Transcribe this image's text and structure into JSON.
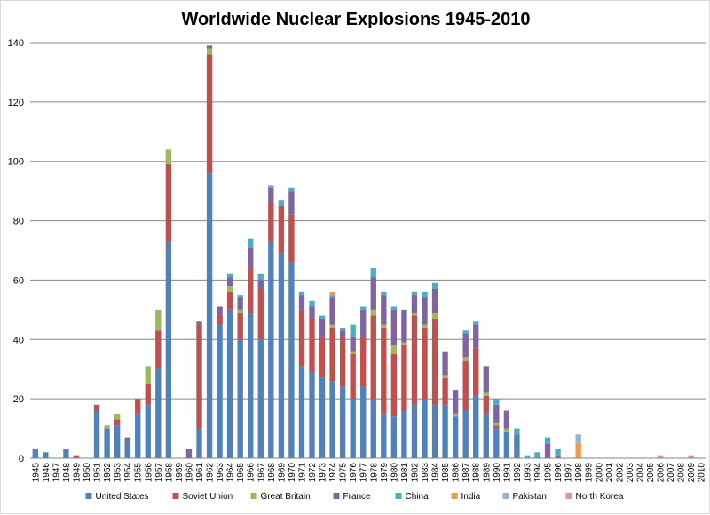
{
  "chart_data": {
    "type": "bar",
    "stacked": true,
    "title": "Worldwide Nuclear Explosions 1945-2010",
    "xlabel": "",
    "ylabel": "",
    "ylim": [
      0,
      140
    ],
    "yticks": [
      "0",
      "20",
      "40",
      "60",
      "80",
      "100",
      "120",
      "140"
    ],
    "grid": true,
    "legend": "bottom",
    "categories": [
      "1945",
      "1946",
      "1947",
      "1948",
      "1949",
      "1950",
      "1951",
      "1952",
      "1953",
      "1954",
      "1955",
      "1956",
      "1957",
      "1958",
      "1959",
      "1960",
      "1961",
      "1962",
      "1963",
      "1964",
      "1965",
      "1966",
      "1967",
      "1968",
      "1969",
      "1970",
      "1971",
      "1972",
      "1973",
      "1974",
      "1975",
      "1976",
      "1977",
      "1978",
      "1979",
      "1980",
      "1981",
      "1982",
      "1983",
      "1984",
      "1985",
      "1986",
      "1987",
      "1988",
      "1989",
      "1990",
      "1991",
      "1992",
      "1993",
      "1994",
      "1995",
      "1996",
      "1997",
      "1998",
      "1999",
      "2000",
      "2001",
      "2002",
      "2003",
      "2004",
      "2005",
      "2006",
      "2007",
      "2008",
      "2009",
      "2010"
    ],
    "series": [
      {
        "name": "United States",
        "color": "#4f81bd",
        "values": [
          3,
          2,
          0,
          3,
          0,
          0,
          16,
          10,
          11,
          6,
          15,
          18,
          30,
          73,
          0,
          0,
          10,
          96,
          45,
          50,
          40,
          49,
          40,
          73,
          69,
          66,
          31,
          29,
          27,
          26,
          24,
          20,
          24,
          20,
          15,
          14,
          16,
          18,
          20,
          18,
          18,
          14,
          16,
          21,
          15,
          10,
          9,
          8,
          0,
          0,
          0,
          0,
          0,
          0,
          0,
          0,
          0,
          0,
          0,
          0,
          0,
          0,
          0,
          0,
          0,
          0
        ]
      },
      {
        "name": "Soviet Union",
        "color": "#c0504d",
        "values": [
          0,
          0,
          0,
          0,
          1,
          0,
          2,
          0,
          2,
          1,
          5,
          7,
          13,
          26,
          0,
          0,
          35,
          40,
          3,
          6,
          9,
          15,
          17,
          13,
          16,
          16,
          19,
          18,
          14,
          18,
          17,
          15,
          17,
          28,
          29,
          21,
          22,
          30,
          24,
          29,
          9,
          0,
          17,
          16,
          6,
          1,
          0,
          0,
          0,
          0,
          0,
          0,
          0,
          0,
          0,
          0,
          0,
          0,
          0,
          0,
          0,
          0,
          0,
          0,
          0,
          0
        ]
      },
      {
        "name": "Great Britain",
        "color": "#9bbb59",
        "values": [
          0,
          0,
          0,
          0,
          0,
          0,
          0,
          1,
          2,
          0,
          0,
          6,
          7,
          5,
          0,
          0,
          0,
          2,
          0,
          2,
          1,
          0,
          0,
          0,
          0,
          0,
          0,
          0,
          0,
          1,
          0,
          1,
          0,
          2,
          1,
          3,
          1,
          1,
          1,
          2,
          1,
          1,
          1,
          0,
          1,
          1,
          1,
          0,
          0,
          0,
          0,
          0,
          0,
          0,
          0,
          0,
          0,
          0,
          0,
          0,
          0,
          0,
          0,
          0,
          0,
          0
        ]
      },
      {
        "name": "France",
        "color": "#8064a2",
        "values": [
          0,
          0,
          0,
          0,
          0,
          0,
          0,
          0,
          0,
          0,
          0,
          0,
          0,
          0,
          0,
          3,
          1,
          1,
          3,
          3,
          4,
          7,
          3,
          5,
          0,
          8,
          5,
          4,
          6,
          9,
          2,
          5,
          9,
          11,
          10,
          12,
          11,
          6,
          9,
          8,
          8,
          8,
          8,
          8,
          9,
          6,
          6,
          0,
          0,
          0,
          5,
          1,
          0,
          0,
          0,
          0,
          0,
          0,
          0,
          0,
          0,
          0,
          0,
          0,
          0,
          0
        ]
      },
      {
        "name": "China",
        "color": "#4bacc6",
        "values": [
          0,
          0,
          0,
          0,
          0,
          0,
          0,
          0,
          0,
          0,
          0,
          0,
          0,
          0,
          0,
          0,
          0,
          0,
          0,
          1,
          1,
          3,
          2,
          1,
          2,
          1,
          1,
          2,
          1,
          1,
          1,
          4,
          1,
          3,
          1,
          1,
          0,
          1,
          2,
          2,
          0,
          0,
          1,
          1,
          0,
          2,
          0,
          2,
          1,
          2,
          2,
          2,
          0,
          0,
          0,
          0,
          0,
          0,
          0,
          0,
          0,
          0,
          0,
          0,
          0,
          0
        ]
      },
      {
        "name": "India",
        "color": "#f79646",
        "values": [
          0,
          0,
          0,
          0,
          0,
          0,
          0,
          0,
          0,
          0,
          0,
          0,
          0,
          0,
          0,
          0,
          0,
          0,
          0,
          0,
          0,
          0,
          0,
          0,
          0,
          0,
          0,
          0,
          0,
          1,
          0,
          0,
          0,
          0,
          0,
          0,
          0,
          0,
          0,
          0,
          0,
          0,
          0,
          0,
          0,
          0,
          0,
          0,
          0,
          0,
          0,
          0,
          0,
          5,
          0,
          0,
          0,
          0,
          0,
          0,
          0,
          0,
          0,
          0,
          0,
          0
        ]
      },
      {
        "name": "Pakistan",
        "color": "#95b3d7",
        "values": [
          0,
          0,
          0,
          0,
          0,
          0,
          0,
          0,
          0,
          0,
          0,
          0,
          0,
          0,
          0,
          0,
          0,
          0,
          0,
          0,
          0,
          0,
          0,
          0,
          0,
          0,
          0,
          0,
          0,
          0,
          0,
          0,
          0,
          0,
          0,
          0,
          0,
          0,
          0,
          0,
          0,
          0,
          0,
          0,
          0,
          0,
          0,
          0,
          0,
          0,
          0,
          0,
          0,
          3,
          0,
          0,
          0,
          0,
          0,
          0,
          0,
          0,
          0,
          0,
          0,
          0
        ]
      },
      {
        "name": "North Korea",
        "color": "#d99694",
        "values": [
          0,
          0,
          0,
          0,
          0,
          0,
          0,
          0,
          0,
          0,
          0,
          0,
          0,
          0,
          0,
          0,
          0,
          0,
          0,
          0,
          0,
          0,
          0,
          0,
          0,
          0,
          0,
          0,
          0,
          0,
          0,
          0,
          0,
          0,
          0,
          0,
          0,
          0,
          0,
          0,
          0,
          0,
          0,
          0,
          0,
          0,
          0,
          0,
          0,
          0,
          0,
          0,
          0,
          0,
          0,
          0,
          0,
          0,
          0,
          0,
          0,
          1,
          0,
          0,
          1,
          0
        ]
      }
    ]
  }
}
